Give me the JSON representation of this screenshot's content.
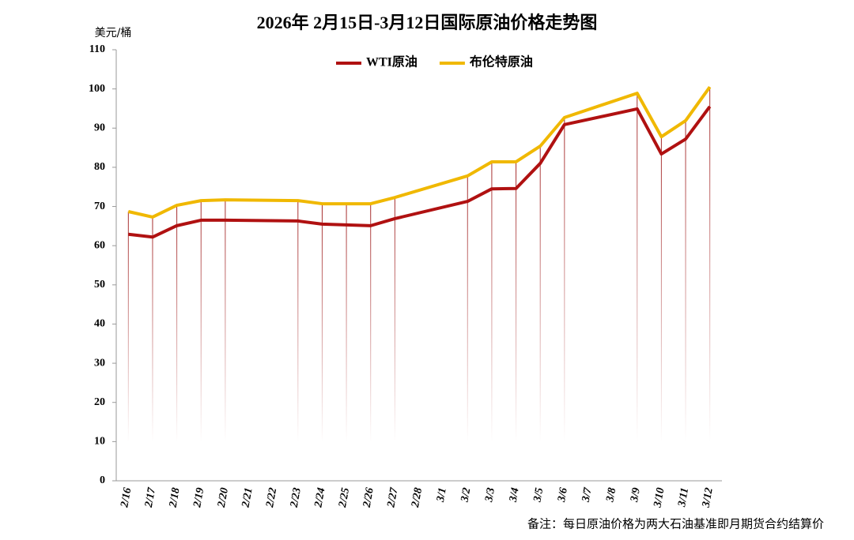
{
  "chart_data": {
    "type": "line",
    "title": "2026年 2月15日-3月12日国际原油价格走势图",
    "y_label": "美元/桶",
    "note": "备注：每日原油价格为两大石油基准即月期货合约结算价",
    "categories": [
      "2/16",
      "2/17",
      "2/18",
      "2/19",
      "2/20",
      "2/21",
      "2/22",
      "2/23",
      "2/24",
      "2/25",
      "2/26",
      "2/27",
      "2/28",
      "3/1",
      "3/2",
      "3/3",
      "3/4",
      "3/5",
      "3/6",
      "3/7",
      "3/8",
      "3/9",
      "3/10",
      "3/11",
      "3/12"
    ],
    "series": [
      {
        "name": "WTI原油",
        "color": "#b01111",
        "values": [
          62.9,
          62.2,
          65.1,
          66.5,
          66.5,
          null,
          null,
          66.3,
          65.5,
          65.3,
          65.1,
          66.9,
          null,
          null,
          71.3,
          74.5,
          74.6,
          81.0,
          90.9,
          null,
          null,
          94.9,
          83.4,
          87.2,
          95.5
        ]
      },
      {
        "name": "布伦特原油",
        "color": "#f0b800",
        "values": [
          68.7,
          67.3,
          70.3,
          71.5,
          71.7,
          null,
          null,
          71.5,
          70.7,
          70.7,
          70.7,
          72.3,
          null,
          null,
          77.8,
          81.4,
          81.4,
          85.4,
          92.7,
          null,
          null,
          98.9,
          87.8,
          91.9,
          100.5
        ]
      }
    ],
    "span_gaps": true,
    "ylim": [
      0,
      110
    ],
    "yticks": [
      0,
      10,
      20,
      30,
      40,
      50,
      60,
      70,
      80,
      90,
      100,
      110
    ],
    "legend": "top"
  }
}
